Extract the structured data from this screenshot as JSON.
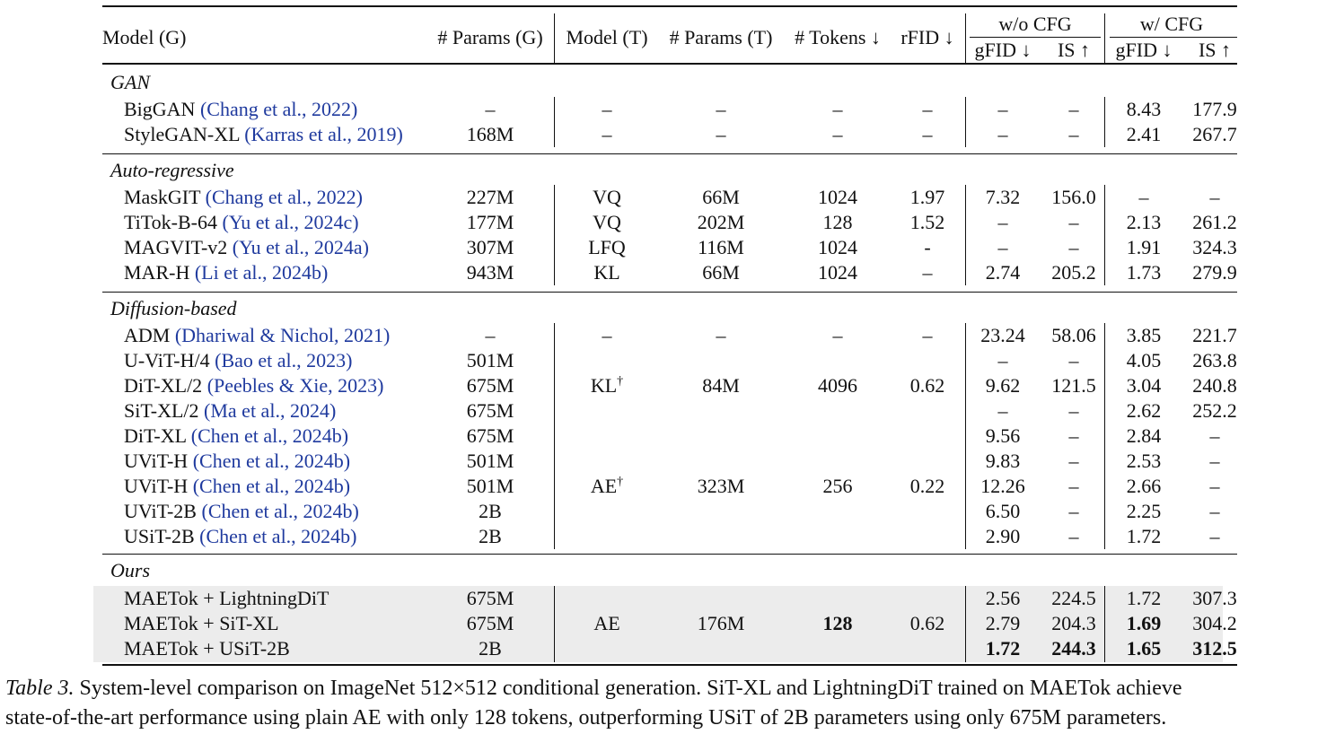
{
  "header": {
    "model_g": "Model (G)",
    "params_g": "# Params (G)",
    "model_t": "Model (T)",
    "params_t": "# Params (T)",
    "tokens": "# Tokens ↓",
    "rfid": "rFID ↓",
    "wo_cfg": "w/o CFG",
    "w_cfg": "w/ CFG",
    "gfid": "gFID ↓",
    "is": "IS ↑"
  },
  "sections": [
    {
      "title": "GAN",
      "rows": [
        {
          "name": "BigGAN",
          "cite": "(Chang et al., 2022)",
          "params_g": "–",
          "model_t": "–",
          "params_t": "–",
          "tokens": "–",
          "rfid": "–",
          "wo_gfid": "–",
          "wo_is": "–",
          "w_gfid": "8.43",
          "w_is": "177.9"
        },
        {
          "name": "StyleGAN-XL",
          "cite": "(Karras et al., 2019)",
          "params_g": "168M",
          "model_t": "–",
          "params_t": "–",
          "tokens": "–",
          "rfid": "–",
          "wo_gfid": "–",
          "wo_is": "–",
          "w_gfid": "2.41",
          "w_is": "267.7"
        }
      ]
    },
    {
      "title": "Auto-regressive",
      "rows": [
        {
          "name": "MaskGIT",
          "cite": "(Chang et al., 2022)",
          "params_g": "227M",
          "model_t": "VQ",
          "params_t": "66M",
          "tokens": "1024",
          "rfid": "1.97",
          "wo_gfid": "7.32",
          "wo_is": "156.0",
          "w_gfid": "–",
          "w_is": "–"
        },
        {
          "name": "TiTok-B-64",
          "cite": "(Yu et al., 2024c)",
          "params_g": "177M",
          "model_t": "VQ",
          "params_t": "202M",
          "tokens": "128",
          "rfid": "1.52",
          "wo_gfid": "–",
          "wo_is": "–",
          "w_gfid": "2.13",
          "w_is": "261.2"
        },
        {
          "name": "MAGVIT-v2",
          "cite": "(Yu et al., 2024a)",
          "params_g": "307M",
          "model_t": "LFQ",
          "params_t": "116M",
          "tokens": "1024",
          "rfid": "-",
          "wo_gfid": "–",
          "wo_is": "–",
          "w_gfid": "1.91",
          "w_is": "324.3"
        },
        {
          "name": "MAR-H",
          "cite": "(Li et al., 2024b)",
          "params_g": "943M",
          "model_t": "KL",
          "params_t": "66M",
          "tokens": "1024",
          "rfid": "–",
          "wo_gfid": "2.74",
          "wo_is": "205.2",
          "w_gfid": "1.73",
          "w_is": "279.9"
        }
      ]
    },
    {
      "title": "Diffusion-based",
      "rows": [
        {
          "name": "ADM",
          "cite": "(Dhariwal & Nichol, 2021)",
          "params_g": "–",
          "model_t": "–",
          "params_t": "–",
          "tokens": "–",
          "rfid": "–",
          "wo_gfid": "23.24",
          "wo_is": "58.06",
          "w_gfid": "3.85",
          "w_is": "221.7"
        },
        {
          "name": "U-ViT-H/4",
          "cite": "(Bao et al., 2023)",
          "params_g": "501M",
          "model_t": "",
          "params_t": "",
          "tokens": "",
          "rfid": "",
          "wo_gfid": "–",
          "wo_is": "–",
          "w_gfid": "4.05",
          "w_is": "263.8"
        },
        {
          "name": "DiT-XL/2",
          "cite": "(Peebles & Xie, 2023)",
          "params_g": "675M",
          "model_t": "KL†",
          "params_t": "84M",
          "tokens": "4096",
          "rfid": "0.62",
          "wo_gfid": "9.62",
          "wo_is": "121.5",
          "w_gfid": "3.04",
          "w_is": "240.8"
        },
        {
          "name": "SiT-XL/2",
          "cite": "(Ma et al., 2024)",
          "params_g": "675M",
          "model_t": "",
          "params_t": "",
          "tokens": "",
          "rfid": "",
          "wo_gfid": "–",
          "wo_is": "–",
          "w_gfid": "2.62",
          "w_is": "252.2"
        },
        {
          "name": "DiT-XL",
          "cite": "(Chen et al., 2024b)",
          "params_g": "675M",
          "model_t": "",
          "params_t": "",
          "tokens": "",
          "rfid": "",
          "wo_gfid": "9.56",
          "wo_is": "–",
          "w_gfid": "2.84",
          "w_is": "–"
        },
        {
          "name": "UViT-H",
          "cite": "(Chen et al., 2024b)",
          "params_g": "501M",
          "model_t": "",
          "params_t": "",
          "tokens": "",
          "rfid": "",
          "wo_gfid": "9.83",
          "wo_is": "–",
          "w_gfid": "2.53",
          "w_is": "–"
        },
        {
          "name": "UViT-H",
          "cite": "(Chen et al., 2024b)",
          "params_g": "501M",
          "model_t": "AE†",
          "params_t": "323M",
          "tokens": "256",
          "rfid": "0.22",
          "wo_gfid": "12.26",
          "wo_is": "–",
          "w_gfid": "2.66",
          "w_is": "–"
        },
        {
          "name": "UViT-2B",
          "cite": "(Chen et al., 2024b)",
          "params_g": "2B",
          "model_t": "",
          "params_t": "",
          "tokens": "",
          "rfid": "",
          "wo_gfid": "6.50",
          "wo_is": "–",
          "w_gfid": "2.25",
          "w_is": "–"
        },
        {
          "name": "USiT-2B",
          "cite": "(Chen et al., 2024b)",
          "params_g": "2B",
          "model_t": "",
          "params_t": "",
          "tokens": "",
          "rfid": "",
          "wo_gfid": "2.90",
          "wo_is": "–",
          "w_gfid": "1.72",
          "w_is": "–"
        }
      ]
    },
    {
      "title": "Ours",
      "rows": [
        {
          "name": "MAETok + LightningDiT",
          "cite": "",
          "params_g": "675M",
          "model_t": "",
          "params_t": "",
          "tokens": "",
          "rfid": "",
          "wo_gfid": "2.56",
          "wo_is": "224.5",
          "w_gfid": "1.72",
          "w_is": "307.3"
        },
        {
          "name": "MAETok + SiT-XL",
          "cite": "",
          "params_g": "675M",
          "model_t": "AE",
          "params_t": "176M",
          "tokens": "128",
          "rfid": "0.62",
          "wo_gfid": "2.79",
          "wo_is": "204.3",
          "w_gfid": "1.69",
          "w_is": "304.2"
        },
        {
          "name": "MAETok + USiT-2B",
          "cite": "",
          "params_g": "2B",
          "model_t": "",
          "params_t": "",
          "tokens": "",
          "rfid": "",
          "wo_gfid": "1.72",
          "wo_is": "244.3",
          "w_gfid": "1.65",
          "w_is": "312.5"
        }
      ]
    }
  ],
  "caption": {
    "label": "Table 3.",
    "line1": " System-level comparison on ImageNet 512×512 conditional generation. SiT-XL and LightningDiT trained on MAETok achieve",
    "line2": "state-of-the-art performance using plain AE with only 128 tokens, outperforming USiT of 2B parameters using only 675M parameters."
  }
}
